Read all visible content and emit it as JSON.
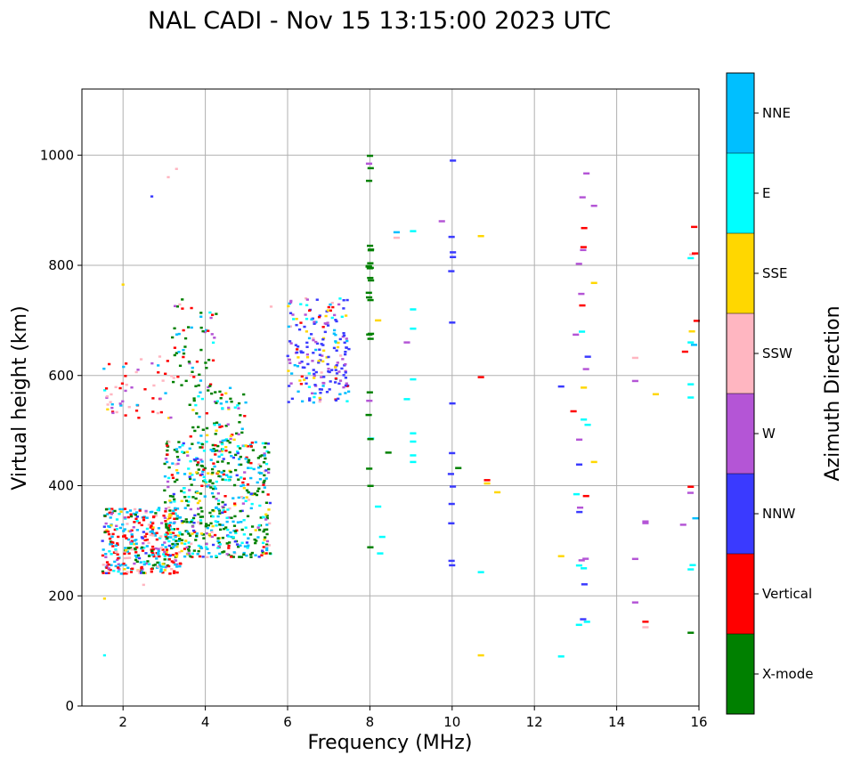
{
  "chart_data": {
    "type": "scatter",
    "title": "NAL CADI - Nov 15 13:15:00 2023 UTC",
    "xlabel": "Frequency (MHz)",
    "ylabel": "Virtual height (km)",
    "xlim": [
      1,
      16
    ],
    "ylim": [
      0,
      1120
    ],
    "xticks": [
      2,
      4,
      6,
      8,
      10,
      12,
      14,
      16
    ],
    "yticks": [
      0,
      200,
      400,
      600,
      800,
      1000
    ],
    "grid": true,
    "colorbar": {
      "label": "Azimuth Direction",
      "categories": [
        {
          "name": "X-mode",
          "color": "#008000"
        },
        {
          "name": "Vertical",
          "color": "#ff0000"
        },
        {
          "name": "NNW",
          "color": "#3a3aff"
        },
        {
          "name": "W",
          "color": "#b455d6"
        },
        {
          "name": "SSW",
          "color": "#ffb6c1"
        },
        {
          "name": "SSE",
          "color": "#ffd700"
        },
        {
          "name": "E",
          "color": "#00ffff"
        },
        {
          "name": "NNE",
          "color": "#00bfff"
        }
      ]
    },
    "cell_size": {
      "freq_mhz": 0.07,
      "height_km": 4
    },
    "clusters": [
      {
        "freq": [
          1.5,
          3.4
        ],
        "height": [
          240,
          360
        ],
        "count": 380,
        "weights": {
          "Vertical": 0.32,
          "NNE": 0.24,
          "E": 0.1,
          "W": 0.1,
          "SSW": 0.08,
          "X-mode": 0.08,
          "NNW": 0.04,
          "SSE": 0.04
        }
      },
      {
        "freq": [
          3.0,
          5.6
        ],
        "height": [
          270,
          480
        ],
        "count": 560,
        "weights": {
          "X-mode": 0.32,
          "NNE": 0.22,
          "E": 0.14,
          "SSE": 0.1,
          "Vertical": 0.08,
          "W": 0.06,
          "NNW": 0.05,
          "SSW": 0.03
        }
      },
      {
        "freq": [
          3.6,
          5.0
        ],
        "height": [
          480,
          580
        ],
        "count": 70,
        "weights": {
          "X-mode": 0.35,
          "NNE": 0.2,
          "E": 0.15,
          "Vertical": 0.1,
          "SSE": 0.1,
          "W": 0.1
        }
      },
      {
        "freq": [
          3.2,
          4.3
        ],
        "height": [
          580,
          740
        ],
        "count": 60,
        "weights": {
          "X-mode": 0.35,
          "Vertical": 0.2,
          "NNE": 0.15,
          "E": 0.1,
          "SSW": 0.1,
          "W": 0.1
        }
      },
      {
        "freq": [
          1.5,
          3.2
        ],
        "height": [
          520,
          640
        ],
        "count": 55,
        "weights": {
          "Vertical": 0.3,
          "SSW": 0.2,
          "NNE": 0.15,
          "W": 0.15,
          "E": 0.1,
          "SSE": 0.1
        }
      },
      {
        "freq": [
          6.0,
          7.5
        ],
        "height": [
          550,
          740
        ],
        "count": 210,
        "weights": {
          "NNW": 0.42,
          "W": 0.16,
          "NNE": 0.12,
          "SSE": 0.1,
          "Vertical": 0.08,
          "SSW": 0.07,
          "E": 0.05
        }
      },
      {
        "freq": [
          7.97,
          8.03
        ],
        "height": [
          280,
          1010
        ],
        "count": 28,
        "weights": {
          "X-mode": 0.8,
          "W": 0.1,
          "E": 0.1
        }
      },
      {
        "freq": [
          9.97,
          10.03
        ],
        "height": [
          230,
          1000
        ],
        "count": 14,
        "weights": {
          "NNW": 1.0
        }
      },
      {
        "freq": [
          13.0,
          13.3
        ],
        "height": [
          120,
          1010
        ],
        "count": 26,
        "weights": {
          "W": 0.6,
          "NNW": 0.2,
          "E": 0.1,
          "Vertical": 0.1
        }
      },
      {
        "freq": [
          15.6,
          15.95
        ],
        "height": [
          130,
          890
        ],
        "count": 11,
        "weights": {
          "W": 0.2,
          "Vertical": 0.2,
          "NNE": 0.2,
          "SSW": 0.15,
          "SSE": 0.1,
          "E": 0.1,
          "X-mode": 0.05
        }
      }
    ],
    "points": [
      {
        "x": 1.55,
        "y": 92,
        "c": "E"
      },
      {
        "x": 1.55,
        "y": 195,
        "c": "SSE"
      },
      {
        "x": 2.0,
        "y": 765,
        "c": "SSE"
      },
      {
        "x": 2.7,
        "y": 925,
        "c": "NNW"
      },
      {
        "x": 3.1,
        "y": 960,
        "c": "SSW"
      },
      {
        "x": 3.3,
        "y": 975,
        "c": "SSW"
      },
      {
        "x": 2.5,
        "y": 220,
        "c": "SSW"
      },
      {
        "x": 5.6,
        "y": 725,
        "c": "SSW"
      },
      {
        "x": 8.2,
        "y": 362,
        "c": "E"
      },
      {
        "x": 8.3,
        "y": 307,
        "c": "E"
      },
      {
        "x": 8.25,
        "y": 277,
        "c": "E"
      },
      {
        "x": 8.2,
        "y": 700,
        "c": "SSE"
      },
      {
        "x": 8.45,
        "y": 460,
        "c": "X-mode"
      },
      {
        "x": 8.65,
        "y": 860,
        "c": "NNE"
      },
      {
        "x": 8.65,
        "y": 850,
        "c": "SSW"
      },
      {
        "x": 8.9,
        "y": 557,
        "c": "E"
      },
      {
        "x": 8.9,
        "y": 660,
        "c": "W"
      },
      {
        "x": 9.05,
        "y": 862,
        "c": "E"
      },
      {
        "x": 9.05,
        "y": 720,
        "c": "E"
      },
      {
        "x": 9.05,
        "y": 685,
        "c": "E"
      },
      {
        "x": 9.05,
        "y": 593,
        "c": "E"
      },
      {
        "x": 9.05,
        "y": 495,
        "c": "E"
      },
      {
        "x": 9.05,
        "y": 480,
        "c": "E"
      },
      {
        "x": 9.05,
        "y": 455,
        "c": "E"
      },
      {
        "x": 9.05,
        "y": 443,
        "c": "E"
      },
      {
        "x": 9.75,
        "y": 880,
        "c": "W"
      },
      {
        "x": 10.15,
        "y": 432,
        "c": "X-mode"
      },
      {
        "x": 10.7,
        "y": 853,
        "c": "SSE"
      },
      {
        "x": 10.7,
        "y": 597,
        "c": "Vertical"
      },
      {
        "x": 10.7,
        "y": 243,
        "c": "E"
      },
      {
        "x": 10.7,
        "y": 92,
        "c": "SSE"
      },
      {
        "x": 10.85,
        "y": 410,
        "c": "Vertical"
      },
      {
        "x": 10.85,
        "y": 404,
        "c": "SSE"
      },
      {
        "x": 11.1,
        "y": 388,
        "c": "SSE"
      },
      {
        "x": 12.65,
        "y": 580,
        "c": "NNW"
      },
      {
        "x": 12.65,
        "y": 272,
        "c": "SSE"
      },
      {
        "x": 12.65,
        "y": 90,
        "c": "E"
      },
      {
        "x": 12.95,
        "y": 535,
        "c": "Vertical"
      },
      {
        "x": 13.2,
        "y": 578,
        "c": "SSE"
      },
      {
        "x": 13.2,
        "y": 520,
        "c": "E"
      },
      {
        "x": 13.2,
        "y": 250,
        "c": "E"
      },
      {
        "x": 13.45,
        "y": 908,
        "c": "W"
      },
      {
        "x": 13.45,
        "y": 768,
        "c": "SSE"
      },
      {
        "x": 13.45,
        "y": 443,
        "c": "SSE"
      },
      {
        "x": 14.45,
        "y": 632,
        "c": "SSW"
      },
      {
        "x": 14.45,
        "y": 590,
        "c": "W"
      },
      {
        "x": 14.45,
        "y": 267,
        "c": "W"
      },
      {
        "x": 14.45,
        "y": 188,
        "c": "W"
      },
      {
        "x": 14.7,
        "y": 335,
        "c": "W"
      },
      {
        "x": 14.7,
        "y": 332,
        "c": "W"
      },
      {
        "x": 14.7,
        "y": 153,
        "c": "Vertical"
      },
      {
        "x": 14.7,
        "y": 143,
        "c": "SSW"
      },
      {
        "x": 14.95,
        "y": 566,
        "c": "SSE"
      },
      {
        "x": 15.8,
        "y": 248,
        "c": "E"
      },
      {
        "x": 15.8,
        "y": 133,
        "c": "X-mode"
      },
      {
        "x": 15.8,
        "y": 398,
        "c": "Vertical"
      },
      {
        "x": 15.8,
        "y": 660,
        "c": "E"
      },
      {
        "x": 15.8,
        "y": 584,
        "c": "E"
      },
      {
        "x": 15.8,
        "y": 560,
        "c": "E"
      },
      {
        "x": 15.8,
        "y": 813,
        "c": "E"
      }
    ]
  }
}
